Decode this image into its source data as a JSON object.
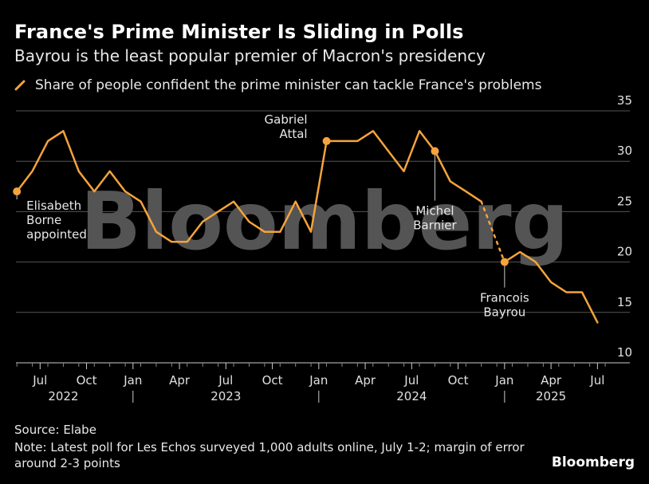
{
  "header": {
    "title": "France's Prime Minister Is Sliding in Polls",
    "subtitle": "Bayrou is the least popular premier of Macron's presidency"
  },
  "legend": {
    "label": "Share of people confident the prime minister can tackle France's problems"
  },
  "footer": {
    "source": "Source: Elabe",
    "note": "Note: Latest poll for Les Echos surveyed 1,000 adults online, July 1-2; margin of error around 2-3 points",
    "brand": "Bloomberg"
  },
  "watermark": "Bloomberg",
  "colors": {
    "series": "#f5a33c",
    "background": "#000000",
    "grid": "#555555"
  },
  "chart_data": {
    "type": "line",
    "ylim": [
      10,
      35
    ],
    "yticks": [
      10,
      15,
      20,
      25,
      30,
      35
    ],
    "xlim": [
      2022.37,
      2025.58
    ],
    "xticks": [
      {
        "label": "Jul",
        "t": 2022.5
      },
      {
        "label": "Oct",
        "t": 2022.75
      },
      {
        "label": "Jan",
        "t": 2023.0
      },
      {
        "label": "Apr",
        "t": 2023.25
      },
      {
        "label": "Jul",
        "t": 2023.5
      },
      {
        "label": "Oct",
        "t": 2023.75
      },
      {
        "label": "Jan",
        "t": 2024.0
      },
      {
        "label": "Apr",
        "t": 2024.25
      },
      {
        "label": "Jul",
        "t": 2024.5
      },
      {
        "label": "Oct",
        "t": 2024.75
      },
      {
        "label": "Jan",
        "t": 2025.0
      },
      {
        "label": "Apr",
        "t": 2025.25
      },
      {
        "label": "Jul",
        "t": 2025.5
      }
    ],
    "years": [
      {
        "label": "2022",
        "t": 2022.625
      },
      {
        "label": "2023",
        "t": 2023.5
      },
      {
        "label": "2024",
        "t": 2024.5
      },
      {
        "label": "2025",
        "t": 2025.25
      }
    ],
    "year_separators": [
      2023.0,
      2024.0,
      2025.0
    ],
    "series": [
      {
        "segment": "solid",
        "x": [
          2022.375,
          2022.458,
          2022.542,
          2022.625,
          2022.708,
          2022.792,
          2022.875,
          2022.958,
          2023.042,
          2023.125,
          2023.208,
          2023.292,
          2023.375,
          2023.458,
          2023.542,
          2023.625,
          2023.708,
          2023.792,
          2023.875,
          2023.958,
          2024.042,
          2024.125,
          2024.208,
          2024.292,
          2024.375,
          2024.458,
          2024.542,
          2024.625,
          2024.708,
          2024.792,
          2024.875
        ],
        "y": [
          27,
          29,
          32,
          33,
          29,
          27,
          29,
          27,
          26,
          23,
          22,
          22,
          24,
          25,
          26,
          24,
          23,
          23,
          26,
          23,
          32,
          32,
          32,
          33,
          31,
          29,
          33,
          31,
          28,
          27,
          26
        ]
      },
      {
        "segment": "dotted",
        "x": [
          2024.875,
          2024.958,
          2025.0
        ],
        "y": [
          26,
          22,
          20
        ]
      },
      {
        "segment": "solid",
        "x": [
          2025.0,
          2025.083,
          2025.167,
          2025.25,
          2025.333,
          2025.417,
          2025.5
        ],
        "y": [
          20,
          21,
          20,
          18,
          17,
          17,
          14
        ]
      }
    ],
    "annotations": [
      {
        "text": [
          "Elisabeth",
          "Borne",
          "appointed"
        ],
        "x": 2022.375,
        "y": 27,
        "align": "start"
      },
      {
        "text": [
          "Gabriel",
          "Attal"
        ],
        "x": 2024.042,
        "y": 32,
        "align": "end"
      },
      {
        "text": [
          "Michel",
          "Barnier"
        ],
        "x": 2024.625,
        "y": 31,
        "align": "middle"
      },
      {
        "text": [
          "Francois",
          "Bayrou"
        ],
        "x": 2025.0,
        "y": 20,
        "align": "middle"
      }
    ]
  }
}
